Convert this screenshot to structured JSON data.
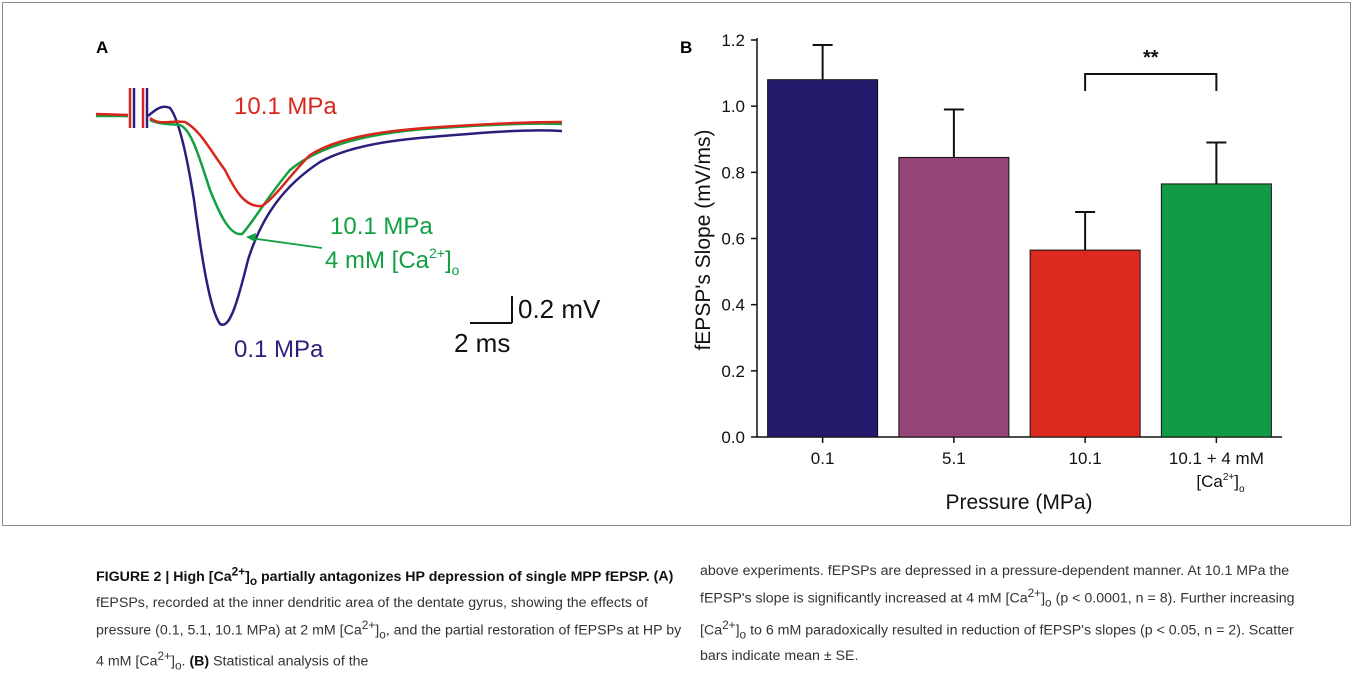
{
  "panel_a": {
    "label": "A",
    "traces": [
      {
        "name": "10.1 MPa",
        "color": "#d9261c"
      },
      {
        "name": "10.1 MPa",
        "name_line2": "4 mM [Ca",
        "color": "#12a043"
      },
      {
        "name": "0.1 MPa",
        "color": "#2b1e7c"
      }
    ],
    "scale_bar": {
      "voltage": "0.2 mV",
      "time": "2 ms"
    }
  },
  "chart_data": {
    "type": "bar",
    "panel_label": "B",
    "categories": [
      "0.1",
      "5.1",
      "10.1",
      "10.1 + 4 mM"
    ],
    "category_line2": "[Ca",
    "values": [
      1.08,
      0.845,
      0.565,
      0.765
    ],
    "errors": [
      0.105,
      0.145,
      0.115,
      0.125
    ],
    "colors": [
      "#241a6b",
      "#954478",
      "#dc2a1e",
      "#139a44"
    ],
    "ylabel": "fEPSP's Slope (mV/ms)",
    "xlabel": "Pressure (MPa)",
    "ylim": [
      0,
      1.2
    ],
    "yticks": [
      "0.0",
      "0.2",
      "0.4",
      "0.6",
      "0.8",
      "1.0",
      "1.2"
    ],
    "significance": {
      "from": 2,
      "to": 3,
      "label": "**"
    }
  },
  "caption": {
    "heading": "FIGURE 2 | High [Ca",
    "heading_rest": " partially antagonizes HP depression of single MPP fEPSP.",
    "a_label": "(A)",
    "a_text_1": " fEPSPs, recorded at the inner dendritic area of the dentate gyrus, showing the effects of pressure (0.1, 5.1, 10.1 MPa) at 2 mM [Ca",
    "a_text_2": ", and the partial restoration of fEPSPs at HP by 4 mM [Ca",
    "b_label": "(B)",
    "b_text": " Statistical analysis of the",
    "right_1": "above experiments. fEPSPs are depressed in a pressure-dependent manner. At 10.1 MPa the fEPSP's slope is significantly increased at 4 mM [Ca",
    "right_2": "(p < 0.0001, n = 8). Further increasing [Ca",
    "right_3": " to 6 mM paradoxically resulted in reduction of fEPSP's slopes (p < 0.05, n = 2). Scatter bars indicate mean ± SE."
  }
}
